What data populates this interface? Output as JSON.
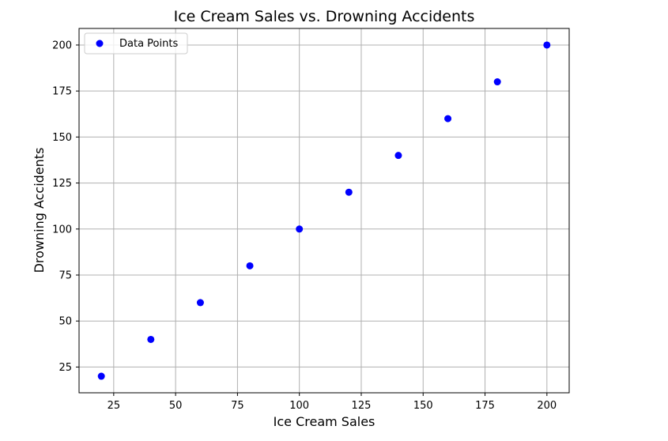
{
  "chart_data": {
    "type": "scatter",
    "title": "Ice Cream Sales vs. Drowning Accidents",
    "xlabel": "Ice Cream Sales",
    "ylabel": "Drowning Accidents",
    "xlim": [
      11,
      209
    ],
    "ylim": [
      11,
      209
    ],
    "xticks": [
      25,
      50,
      75,
      100,
      125,
      150,
      175,
      200
    ],
    "yticks": [
      25,
      50,
      75,
      100,
      125,
      150,
      175,
      200
    ],
    "grid": true,
    "legend": {
      "position": "top-left",
      "entries": [
        "Data Points"
      ]
    },
    "series": [
      {
        "name": "Data Points",
        "color": "#0000ff",
        "points": [
          {
            "x": 20,
            "y": 20
          },
          {
            "x": 40,
            "y": 40
          },
          {
            "x": 60,
            "y": 60
          },
          {
            "x": 80,
            "y": 80
          },
          {
            "x": 100,
            "y": 100
          },
          {
            "x": 120,
            "y": 120
          },
          {
            "x": 140,
            "y": 140
          },
          {
            "x": 160,
            "y": 160
          },
          {
            "x": 180,
            "y": 180
          },
          {
            "x": 200,
            "y": 200
          }
        ]
      }
    ]
  }
}
